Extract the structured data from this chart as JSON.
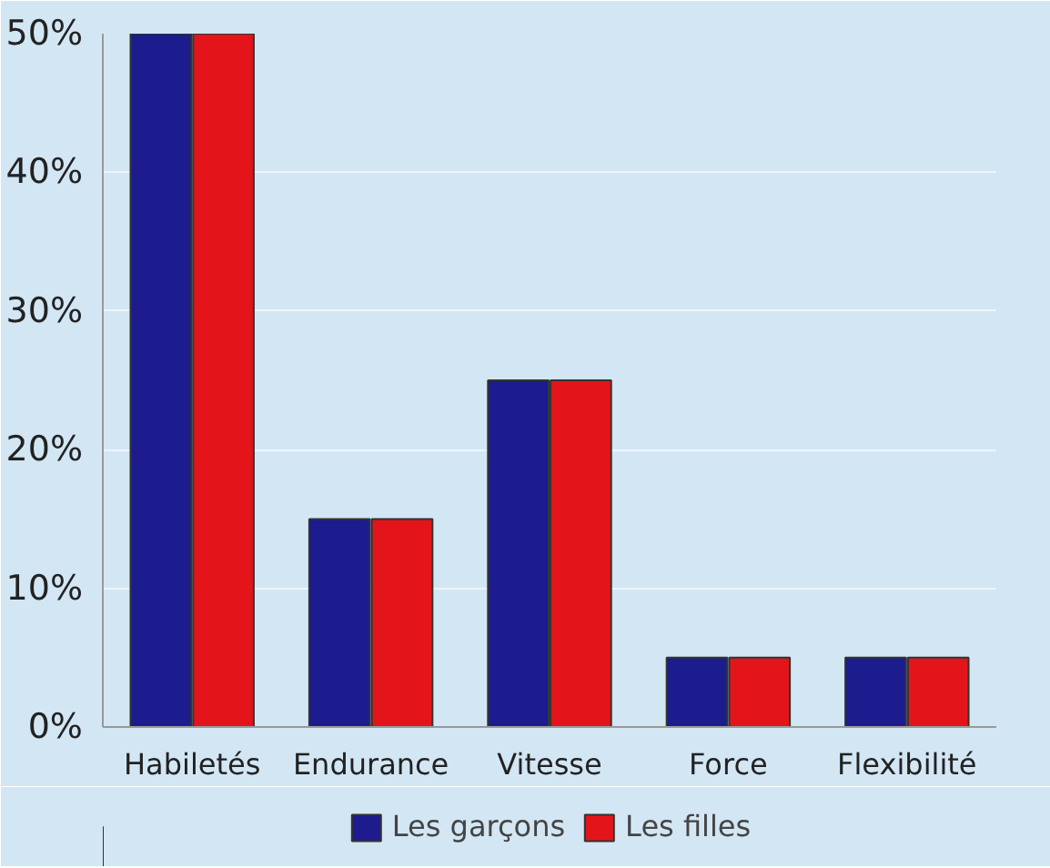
{
  "chart_data": {
    "type": "bar",
    "categories": [
      "Habiletés",
      "Endurance",
      "Vitesse",
      "Force",
      "Flexibilité"
    ],
    "series": [
      {
        "name": "Les garçons",
        "color": "#1c1c8e",
        "values": [
          50,
          15,
          25,
          5,
          5
        ]
      },
      {
        "name": "Les filles",
        "color": "#e3151a",
        "values": [
          50,
          15,
          25,
          5,
          5
        ]
      }
    ],
    "ylim": [
      0,
      50
    ],
    "yticks": [
      {
        "value": 0,
        "label": "0%"
      },
      {
        "value": 10,
        "label": "10%"
      },
      {
        "value": 20,
        "label": "20%"
      },
      {
        "value": 30,
        "label": "30%"
      },
      {
        "value": 40,
        "label": "40%"
      },
      {
        "value": 50,
        "label": "50%"
      }
    ],
    "grid": "y",
    "legend": "bottom"
  }
}
